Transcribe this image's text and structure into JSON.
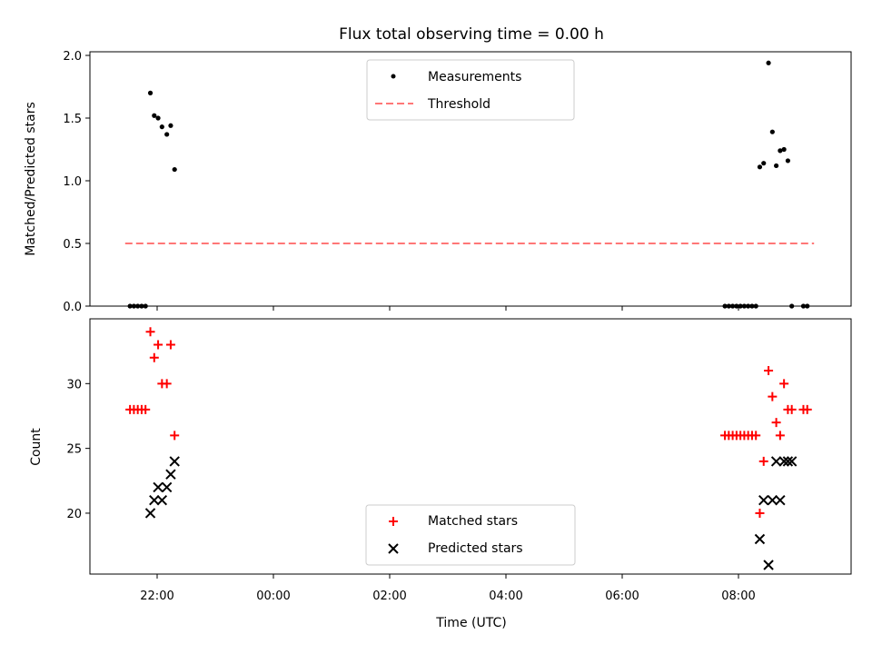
{
  "chart_data": {
    "title": "Flux total observing time = 0.00 h",
    "xlabel": "Time (UTC)",
    "x_tick_labels": [
      "22:00",
      "00:00",
      "02:00",
      "04:00",
      "06:00",
      "08:00"
    ],
    "panels": [
      {
        "type": "scatter",
        "ylabel": "Matched/Predicted stars",
        "ylim": [
          0,
          2.0
        ],
        "y_ticks": [
          "0.0",
          "0.5",
          "1.0",
          "1.5",
          "2.0"
        ],
        "legend_position": "top-center",
        "series": [
          {
            "name": "Measurements",
            "marker": "dot",
            "color": "#000000",
            "x": [
              "21:32",
              "21:36",
              "21:40",
              "21:44",
              "21:48",
              "21:53",
              "21:57",
              "22:01",
              "22:05",
              "22:10",
              "22:14",
              "22:18",
              "22:22",
              "07:46",
              "07:50",
              "07:54",
              "07:58",
              "08:02",
              "08:06",
              "08:10",
              "08:14",
              "08:18",
              "08:22",
              "08:26",
              "08:31",
              "08:35",
              "08:39",
              "08:43",
              "08:47",
              "08:51",
              "08:55",
              "08:59",
              "09:03",
              "09:07",
              "09:11",
              "09:15"
            ],
            "y": [
              0,
              0,
              0,
              0,
              0,
              1.7,
              1.52,
              1.5,
              1.43,
              1.37,
              1.44,
              1.09,
              null,
              0,
              0,
              0,
              0,
              0,
              0,
              0,
              0,
              0,
              1.11,
              1.14,
              1.94,
              1.39,
              1.12,
              1.24,
              1.25,
              1.16,
              0,
              null,
              null,
              0,
              0,
              null
            ]
          },
          {
            "name": "Threshold",
            "style": "dashed",
            "color": "#ff7777",
            "x": [
              "21:27",
              "09:18"
            ],
            "y": [
              0.5,
              0.5
            ]
          }
        ]
      },
      {
        "type": "scatter",
        "ylabel": "Count",
        "ylim": [
          15.3,
          35.0
        ],
        "y_ticks": [
          "20",
          "25",
          "30"
        ],
        "legend_position": "bottom-center",
        "series": [
          {
            "name": "Matched stars",
            "marker": "plus",
            "color": "#ff0000",
            "x": [
              "21:32",
              "21:36",
              "21:40",
              "21:44",
              "21:48",
              "21:53",
              "21:57",
              "22:01",
              "22:05",
              "22:10",
              "22:14",
              "22:18",
              "22:22",
              "07:46",
              "07:50",
              "07:54",
              "07:58",
              "08:02",
              "08:06",
              "08:10",
              "08:14",
              "08:18",
              "08:22",
              "08:26",
              "08:31",
              "08:35",
              "08:39",
              "08:43",
              "08:47",
              "08:51",
              "08:55",
              "08:59",
              "09:03",
              "09:07",
              "09:11",
              "09:15"
            ],
            "y": [
              28,
              28,
              28,
              28,
              28,
              34,
              32,
              33,
              30,
              30,
              33,
              26,
              null,
              26,
              26,
              26,
              26,
              26,
              26,
              26,
              26,
              26,
              20,
              24,
              31,
              29,
              27,
              26,
              30,
              28,
              28,
              null,
              null,
              28,
              28,
              null
            ]
          },
          {
            "name": "Predicted stars",
            "marker": "x",
            "color": "#000000",
            "x": [
              "21:53",
              "21:57",
              "22:01",
              "22:05",
              "22:10",
              "22:14",
              "22:18",
              "08:22",
              "08:26",
              "08:31",
              "08:35",
              "08:39",
              "08:43",
              "08:47",
              "08:51",
              "08:55"
            ],
            "y": [
              20,
              21,
              22,
              21,
              22,
              23,
              24,
              18,
              21,
              16,
              21,
              24,
              21,
              24,
              24,
              24
            ]
          }
        ]
      }
    ]
  }
}
